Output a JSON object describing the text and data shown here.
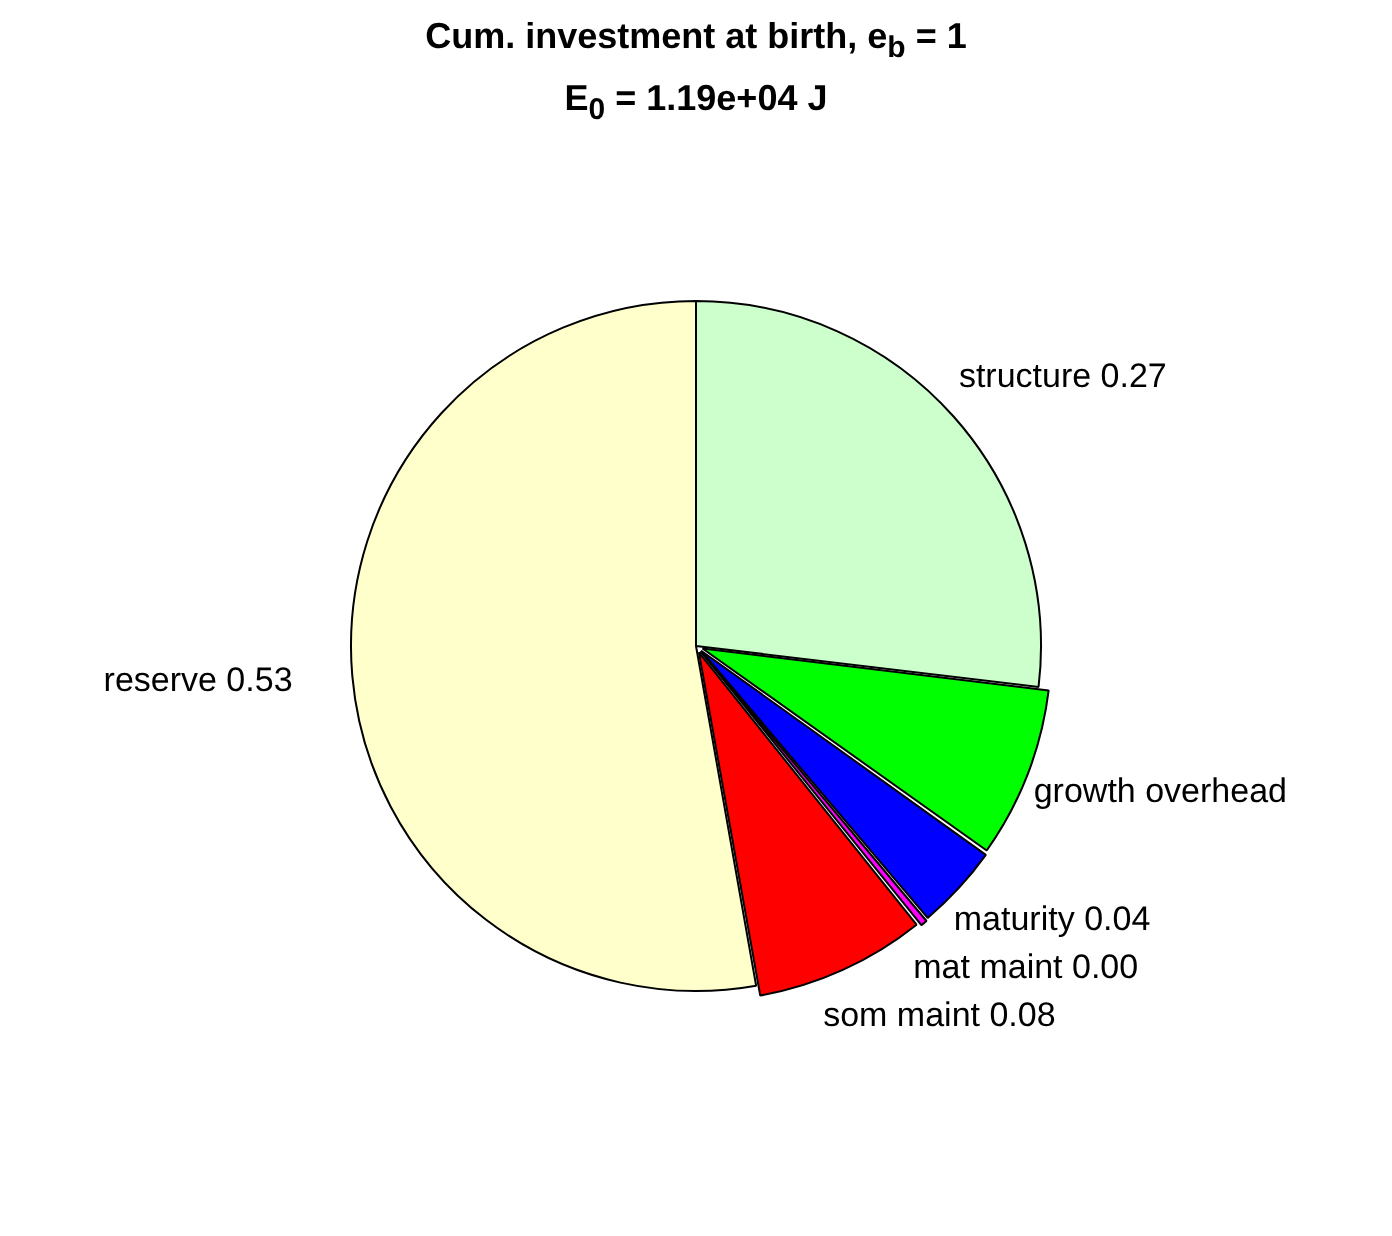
{
  "chart_data": {
    "type": "pie",
    "title": "Cum. investment at birth, e$_{b}$ = 1",
    "subtitle": "E$_{0}$ = 1.19e+04 J",
    "categories": [
      "structure",
      "growth overhead",
      "maturity",
      "mat maint",
      "som maint",
      "reserve"
    ],
    "values": [
      0.27,
      0.08,
      0.04,
      0.004,
      0.08,
      0.53
    ],
    "value_labels": [
      "0.27",
      null,
      "0.04",
      "0.00",
      "0.08",
      "0.53"
    ],
    "colors": [
      "#ccffcc",
      "#00ff00",
      "#0000ff",
      "#ff00ff",
      "#ff0000",
      "#ffffcc"
    ],
    "legend": false
  }
}
